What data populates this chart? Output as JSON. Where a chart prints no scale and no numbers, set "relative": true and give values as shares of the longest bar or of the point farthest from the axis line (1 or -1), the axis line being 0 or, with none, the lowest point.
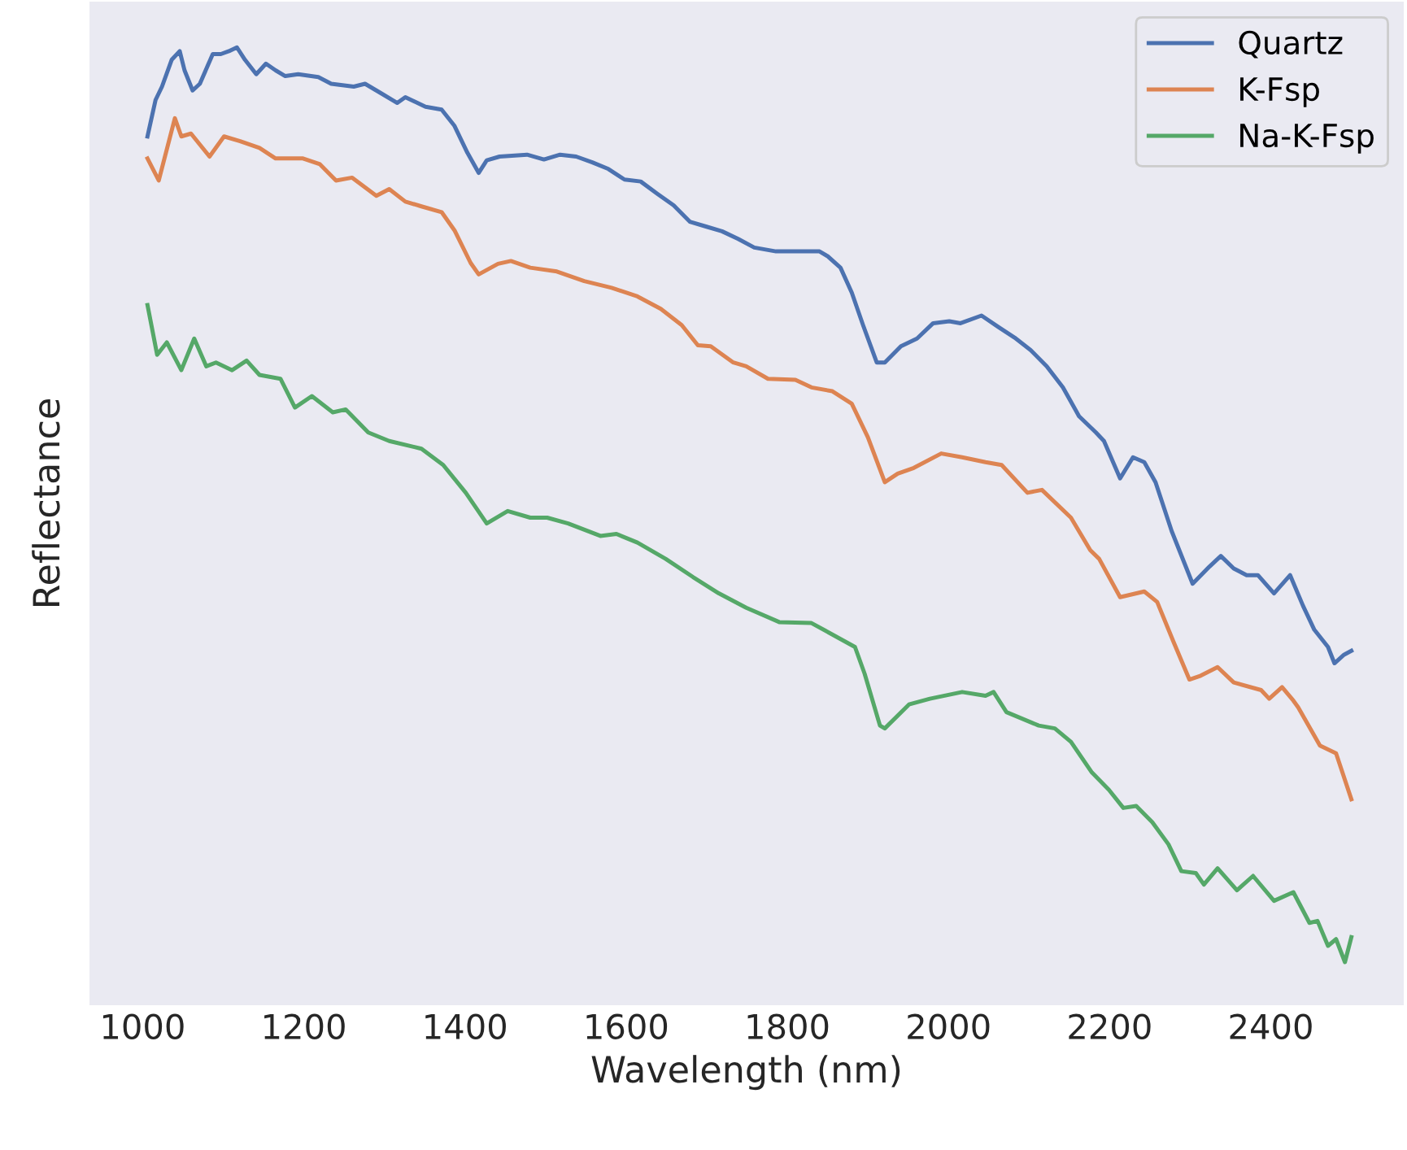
{
  "chart_data": {
    "type": "line",
    "xlabel": "Wavelength (nm)",
    "ylabel": "Reflectance",
    "relative": true,
    "xlim": [
      934,
      2565
    ],
    "xticks": [
      1000,
      1200,
      1400,
      1600,
      1800,
      2000,
      2200,
      2400
    ],
    "grid": false,
    "legend": "top right",
    "tick_labels": "x",
    "series": [
      {
        "name": "Quartz",
        "color": "#4c72b0",
        "x": [
          1006,
          1016,
          1024,
          1036,
          1046,
          1052,
          1062,
          1071,
          1087,
          1097,
          1107,
          1117,
          1127,
          1141,
          1153,
          1165,
          1177,
          1193,
          1218,
          1234,
          1262,
          1276,
          1296,
          1316,
          1326,
          1351,
          1371,
          1387,
          1403,
          1417,
          1427,
          1443,
          1477,
          1498,
          1518,
          1538,
          1558,
          1578,
          1598,
          1618,
          1639,
          1659,
          1679,
          1699,
          1719,
          1739,
          1759,
          1786,
          1840,
          1850,
          1866,
          1880,
          1894,
          1911,
          1921,
          1941,
          1961,
          1981,
          2001,
          2015,
          2041,
          2062,
          2082,
          2102,
          2122,
          2142,
          2162,
          2183,
          2193,
          2213,
          2229,
          2243,
          2257,
          2277,
          2303,
          2324,
          2338,
          2354,
          2370,
          2384,
          2404,
          2424,
          2440,
          2454,
          2471,
          2479,
          2491,
          2500
        ],
        "values": [
          0.907,
          0.945,
          0.959,
          0.987,
          0.996,
          0.976,
          0.955,
          0.962,
          0.993,
          0.993,
          0.996,
          1.0,
          0.987,
          0.972,
          0.983,
          0.976,
          0.97,
          0.972,
          0.969,
          0.962,
          0.959,
          0.962,
          0.952,
          0.942,
          0.948,
          0.938,
          0.935,
          0.918,
          0.89,
          0.869,
          0.882,
          0.886,
          0.888,
          0.883,
          0.888,
          0.886,
          0.88,
          0.873,
          0.862,
          0.86,
          0.847,
          0.835,
          0.818,
          0.813,
          0.808,
          0.8,
          0.791,
          0.787,
          0.787,
          0.782,
          0.77,
          0.744,
          0.71,
          0.671,
          0.671,
          0.688,
          0.696,
          0.712,
          0.714,
          0.712,
          0.72,
          0.708,
          0.697,
          0.684,
          0.667,
          0.645,
          0.615,
          0.598,
          0.589,
          0.55,
          0.572,
          0.567,
          0.546,
          0.495,
          0.44,
          0.458,
          0.469,
          0.456,
          0.449,
          0.449,
          0.43,
          0.449,
          0.417,
          0.392,
          0.374,
          0.357,
          0.366,
          0.37
        ]
      },
      {
        "name": "K-Fsp",
        "color": "#dd8452",
        "x": [
          1006,
          1020,
          1040,
          1048,
          1060,
          1083,
          1101,
          1121,
          1145,
          1165,
          1199,
          1220,
          1240,
          1260,
          1290,
          1306,
          1326,
          1346,
          1371,
          1387,
          1407,
          1417,
          1441,
          1457,
          1481,
          1514,
          1548,
          1582,
          1614,
          1643,
          1669,
          1689,
          1705,
          1733,
          1749,
          1776,
          1810,
          1830,
          1856,
          1880,
          1900,
          1921,
          1937,
          1957,
          1991,
          2017,
          2046,
          2066,
          2098,
          2116,
          2152,
          2176,
          2187,
          2213,
          2243,
          2259,
          2279,
          2299,
          2313,
          2334,
          2354,
          2388,
          2398,
          2414,
          2428,
          2434,
          2461,
          2481,
          2500
        ],
        "values": [
          0.884,
          0.861,
          0.926,
          0.907,
          0.91,
          0.886,
          0.907,
          0.902,
          0.895,
          0.884,
          0.884,
          0.878,
          0.861,
          0.864,
          0.845,
          0.852,
          0.839,
          0.834,
          0.828,
          0.809,
          0.775,
          0.763,
          0.774,
          0.777,
          0.77,
          0.766,
          0.756,
          0.749,
          0.74,
          0.727,
          0.71,
          0.689,
          0.688,
          0.671,
          0.667,
          0.654,
          0.653,
          0.645,
          0.641,
          0.628,
          0.593,
          0.546,
          0.555,
          0.561,
          0.576,
          0.572,
          0.567,
          0.564,
          0.535,
          0.538,
          0.509,
          0.475,
          0.466,
          0.426,
          0.432,
          0.421,
          0.38,
          0.34,
          0.344,
          0.353,
          0.337,
          0.329,
          0.32,
          0.332,
          0.318,
          0.311,
          0.271,
          0.263,
          0.215
        ]
      },
      {
        "name": "Na-K-Fsp",
        "color": "#55a868",
        "x": [
          1006,
          1018,
          1030,
          1048,
          1064,
          1079,
          1091,
          1111,
          1129,
          1145,
          1171,
          1189,
          1210,
          1236,
          1252,
          1280,
          1306,
          1346,
          1373,
          1401,
          1427,
          1453,
          1481,
          1502,
          1528,
          1568,
          1588,
          1614,
          1649,
          1683,
          1715,
          1749,
          1790,
          1830,
          1856,
          1884,
          1896,
          1915,
          1921,
          1951,
          1977,
          2017,
          2046,
          2056,
          2072,
          2112,
          2132,
          2152,
          2178,
          2199,
          2217,
          2233,
          2253,
          2273,
          2289,
          2307,
          2317,
          2334,
          2358,
          2378,
          2404,
          2428,
          2448,
          2458,
          2471,
          2481,
          2492,
          2500
        ],
        "values": [
          0.731,
          0.679,
          0.692,
          0.663,
          0.696,
          0.667,
          0.671,
          0.663,
          0.673,
          0.658,
          0.654,
          0.624,
          0.636,
          0.619,
          0.622,
          0.598,
          0.589,
          0.581,
          0.564,
          0.535,
          0.503,
          0.516,
          0.509,
          0.509,
          0.503,
          0.49,
          0.492,
          0.483,
          0.466,
          0.447,
          0.43,
          0.415,
          0.4,
          0.399,
          0.387,
          0.374,
          0.346,
          0.292,
          0.289,
          0.314,
          0.32,
          0.327,
          0.323,
          0.327,
          0.306,
          0.292,
          0.289,
          0.275,
          0.243,
          0.225,
          0.206,
          0.208,
          0.191,
          0.168,
          0.14,
          0.138,
          0.126,
          0.143,
          0.12,
          0.135,
          0.109,
          0.118,
          0.086,
          0.088,
          0.062,
          0.069,
          0.045,
          0.071
        ]
      }
    ]
  }
}
